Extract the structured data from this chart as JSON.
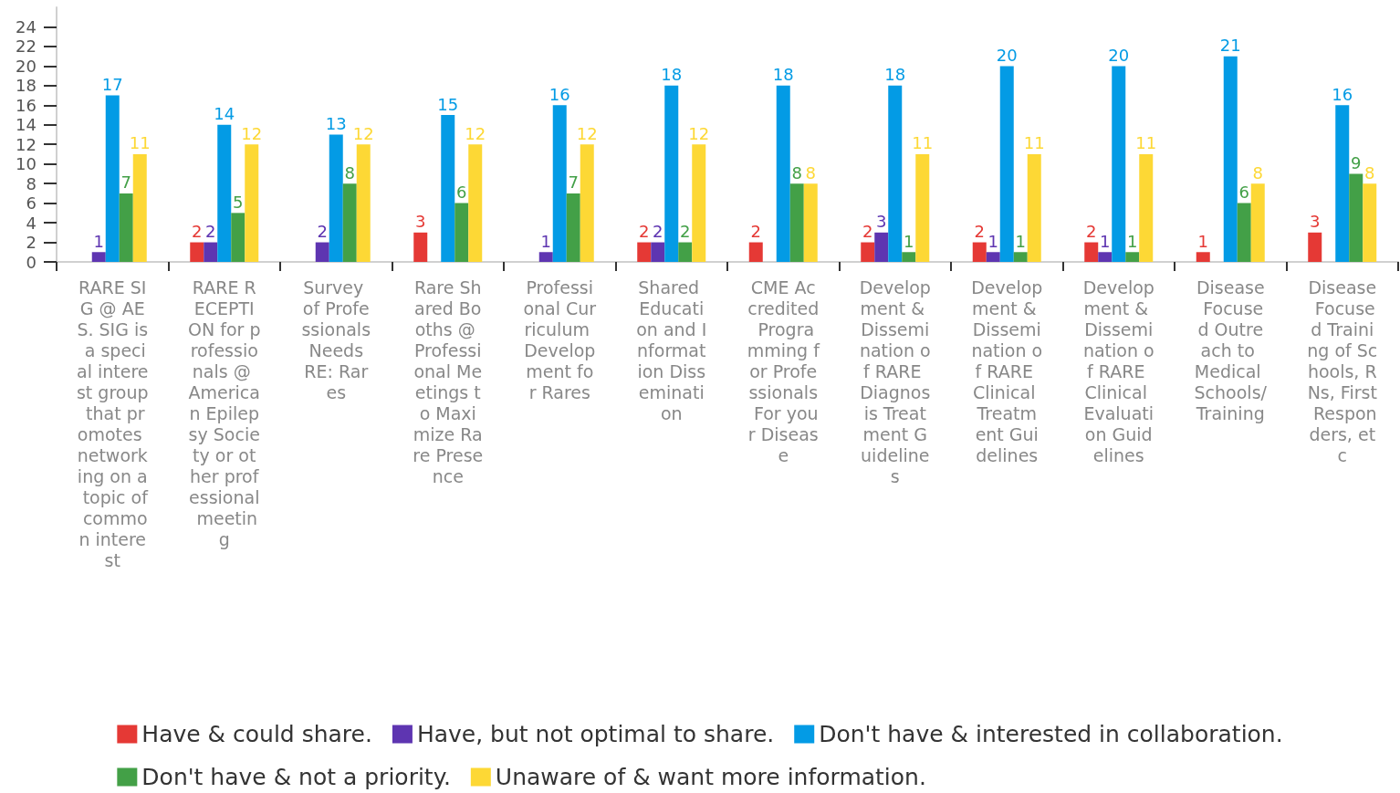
{
  "chart_data": {
    "type": "bar",
    "categories": [
      "RARE SIG @ AES. SIG is a special interest group that promotes networking on a topic of common interest",
      "RARE RECEPTION for professionals @ American Epilepsy Society or other professional meeting",
      "Survey of Professionals Needs RE: Rares",
      "Rare Shared Booths @ Professional Meetings to Maximize Rare Presence",
      "Professional Curriculum Development for Rares",
      "Shared Education and Information Dissemination",
      "CME Accredited Programming for Professionals For your Disease",
      "Development & Dissemination of RARE Diagnosis Treatment Guidelines",
      "Development & Dissemination of RARE Clinical Treatment Guidelines",
      "Development & Dissemination of RARE Clinical Evaluation Guidelines",
      "Disease Focused Outreach to Medical Schools/Training",
      "Disease Focused Training of Schools, RNs, First Responders, etc"
    ],
    "series": [
      {
        "name": "Have & could share.",
        "color": "#e53935",
        "values": [
          null,
          2,
          null,
          3,
          null,
          2,
          2,
          2,
          2,
          2,
          1,
          3
        ]
      },
      {
        "name": "Have, but not optimal to share.",
        "color": "#5e35b1",
        "values": [
          1,
          2,
          2,
          null,
          1,
          2,
          null,
          3,
          1,
          1,
          null,
          null
        ]
      },
      {
        "name": "Don't have & interested in collaboration.",
        "color": "#039be5",
        "values": [
          17,
          14,
          13,
          15,
          16,
          18,
          18,
          18,
          20,
          20,
          21,
          16
        ]
      },
      {
        "name": "Don't have & not a priority.",
        "color": "#43a047",
        "values": [
          7,
          5,
          8,
          6,
          7,
          2,
          8,
          1,
          1,
          1,
          6,
          9
        ]
      },
      {
        "name": "Unaware of & want more information.",
        "color": "#fdd835",
        "values": [
          11,
          12,
          12,
          12,
          12,
          12,
          8,
          11,
          11,
          11,
          8,
          8
        ]
      }
    ],
    "ylim": [
      0,
      26
    ],
    "yticks": [
      0,
      2,
      4,
      6,
      8,
      10,
      12,
      14,
      16,
      18,
      20,
      22,
      24
    ],
    "data_labels": true,
    "legend": "bottom",
    "grid": false
  }
}
